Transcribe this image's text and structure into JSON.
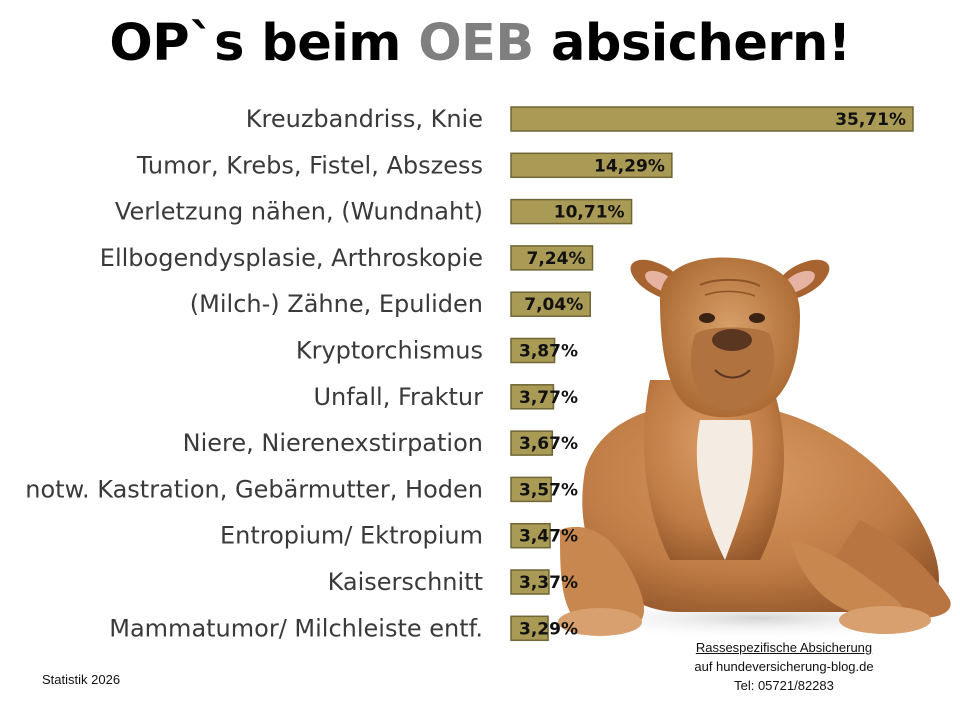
{
  "title": {
    "part1": "OP`s beim ",
    "accent": "OEB",
    "part2": " absichern!"
  },
  "colors": {
    "bar_fill": "#a99a55",
    "bar_edge": "#6f6535",
    "accent_title": "#7f7f7f"
  },
  "chart_data": {
    "type": "bar",
    "orientation": "horizontal",
    "title": "OP`s beim OEB absichern!",
    "categories": [
      "Kreuzbandriss, Knie",
      "Tumor, Krebs, Fistel, Abszess",
      "Verletzung nähen, (Wundnaht)",
      "Ellbogendysplasie, Arthroskopie",
      "(Milch-) Zähne, Epuliden",
      "Kryptorchismus",
      "Unfall, Fraktur",
      "Niere, Nierenexstirpation",
      "notw. Kastration, Gebärmutter, Hoden",
      "Entropium/ Ektropium",
      "Kaiserschnitt",
      "Mammatumor/ Milchleiste entf."
    ],
    "values": [
      35.71,
      14.29,
      10.71,
      7.24,
      7.04,
      3.87,
      3.77,
      3.67,
      3.57,
      3.47,
      3.37,
      3.29
    ],
    "value_labels": [
      "35,71%",
      "14,29%",
      "10,71%",
      "7,24%",
      "7,04%",
      "3,87%",
      "3,77%",
      "3,67%",
      "3,57%",
      "3,47%",
      "3,37%",
      "3,29%"
    ],
    "unit": "%",
    "grid": false,
    "legend": "none"
  },
  "image": {
    "subject": "dog"
  },
  "footer": {
    "left": "Statistik 2026",
    "right_line1": "Rassespezifische Absicherung",
    "right_line2": "auf hundeversicherung-blog.de",
    "right_line3": "Tel: 05721/82283"
  }
}
